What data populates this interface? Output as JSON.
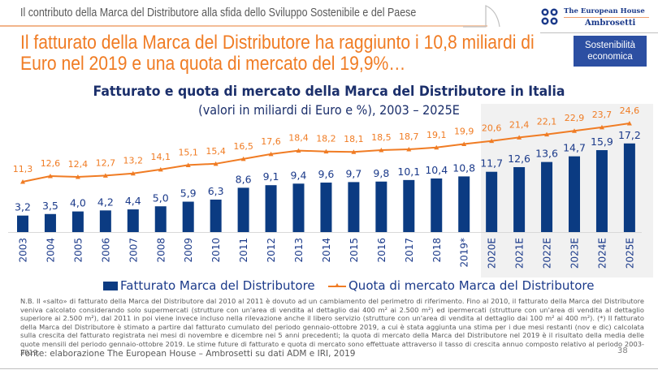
{
  "header": {
    "section_title": "Il contributo della Marca del Distributore alla sfida dello Sviluppo Sostenibile e del Paese",
    "logo_line1": "The European House",
    "logo_line2": "Ambrosetti",
    "badge_line1": "Sostenibilità",
    "badge_line2": "economica"
  },
  "headline": "Il fatturato della Marca del Distributore ha raggiunto i 10,8 miliardi di Euro nel 2019 e una quota di mercato del 19,9%…",
  "chart_data": {
    "type": "bar",
    "title": "Fatturato e quota di mercato della Marca del Distributore in Italia",
    "subtitle": "(valori in miliardi di Euro e %), 2003 – 2025E",
    "categories": [
      "2003",
      "2004",
      "2005",
      "2006",
      "2007",
      "2008",
      "2009",
      "2010",
      "2011",
      "2012",
      "2013",
      "2014",
      "2015",
      "2016",
      "2017",
      "2018",
      "2019*",
      "2020E",
      "2021E",
      "2022E",
      "2023E",
      "2024E",
      "2025E"
    ],
    "series": [
      {
        "name": "Fatturato Marca del Distributore",
        "type": "bar",
        "color": "#0b3b82",
        "values": [
          3.2,
          3.5,
          4.0,
          4.2,
          4.4,
          5.0,
          5.9,
          6.3,
          8.6,
          9.1,
          9.4,
          9.6,
          9.7,
          9.8,
          10.1,
          10.4,
          10.8,
          11.7,
          12.6,
          13.6,
          14.7,
          15.9,
          17.2
        ],
        "labels": [
          "3,2",
          "3,5",
          "4,0",
          "4,2",
          "4,4",
          "5,0",
          "5,9",
          "6,3",
          "8,6",
          "9,1",
          "9,4",
          "9,6",
          "9,7",
          "9,8",
          "10,1",
          "10,4",
          "10,8",
          "11,7",
          "12,6",
          "13,6",
          "14,7",
          "15,9",
          "17,2"
        ]
      },
      {
        "name": "Quota di mercato Marca del Distributore",
        "type": "line",
        "color": "#f07c24",
        "values": [
          11.3,
          12.6,
          12.4,
          12.7,
          13.2,
          14.1,
          15.1,
          15.4,
          16.5,
          17.6,
          18.4,
          18.2,
          18.1,
          18.5,
          18.7,
          19.1,
          19.9,
          20.6,
          21.4,
          22.1,
          22.9,
          23.7,
          24.6
        ],
        "labels": [
          "11,3",
          "12,6",
          "12,4",
          "12,7",
          "13,2",
          "14,1",
          "15,1",
          "15,4",
          "16,5",
          "17,6",
          "18,4",
          "18,2",
          "18,1",
          "18,5",
          "18,7",
          "19,1",
          "19,9",
          "20,6",
          "21,4",
          "22,1",
          "22,9",
          "23,7",
          "24,6"
        ]
      }
    ],
    "projection_start": "2020E",
    "legend_position": "bottom",
    "grid": false,
    "xlabel": "",
    "ylabel": ""
  },
  "legend": {
    "bar_label": "Fatturato Marca del Distributore",
    "line_label": "Quota di mercato Marca del Distributore"
  },
  "note": "N.B. Il «salto» di fatturato della Marca del Distributore dal 2010 al 2011 è dovuto ad un cambiamento del perimetro di riferimento. Fino al 2010, il fatturato della Marca del Distributore veniva calcolato considerando solo supermercati (strutture con un'area di vendita al dettaglio dai 400 m² ai 2.500 m²) ed ipermercati (strutture con un'area di vendita al dettaglio superiore ai 2.500 m²), dal 2011 in poi viene invece incluso nella rilevazione anche il libero servizio (strutture con un'area di vendita al dettaglio dai 100 m² ai 400 m²). (*) Il fatturato della Marca del Distributore è stimato a partire dal fatturato cumulato del periodo gennaio-ottobre 2019, a cui è stata aggiunta una stima per i due mesi restanti (nov e dic) calcolata sulla crescita del fatturato registrata nei mesi di novembre e dicembre nei 5 anni precedenti; la quota di mercato della Marca del Distributore nel 2019 è il risultato della media delle quote mensili del periodo gennaio-ottobre 2019. Le stime future di fatturato e quota di mercato sono effettuate attraverso il tasso di crescita annuo composto relativo al periodo 2003-2019.",
  "source": "Fonte: elaborazione The European House – Ambrosetti su dati ADM e IRI, 2019",
  "page_number": "38"
}
